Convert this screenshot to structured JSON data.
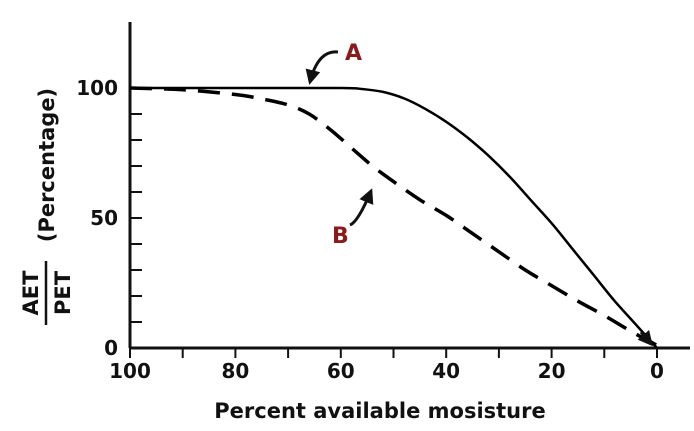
{
  "chart_data": {
    "type": "line",
    "xlabel": "Percent available mosisture",
    "ylabel": {
      "numerator": "AET",
      "denominator": "PET",
      "suffix": "(Percentage)"
    },
    "xlim": [
      100,
      0
    ],
    "ylim": [
      0,
      100
    ],
    "x_ticks": [
      100,
      80,
      60,
      40,
      20,
      0
    ],
    "y_ticks": [
      0,
      50,
      100
    ],
    "grid": false,
    "series": [
      {
        "name": "A",
        "style": "solid",
        "color": "#000000",
        "x": [
          100,
          80,
          60,
          56,
          52,
          48,
          44,
          40,
          36,
          32,
          28,
          24,
          20,
          16,
          12,
          8,
          4,
          0
        ],
        "y": [
          100,
          100,
          100,
          99.6,
          98.5,
          96,
          92,
          87,
          81,
          74,
          66,
          57,
          48,
          38,
          28,
          18,
          9,
          0
        ]
      },
      {
        "name": "B",
        "style": "dashed",
        "color": "#000000",
        "x": [
          100,
          90,
          80,
          75,
          70,
          66,
          62,
          58,
          54,
          50,
          45,
          40,
          35,
          30,
          25,
          20,
          15,
          10,
          5,
          0
        ],
        "y": [
          100,
          99.3,
          97.5,
          95.8,
          93.5,
          90,
          84,
          77,
          70,
          64,
          57,
          51,
          44,
          37,
          30,
          24,
          18,
          12.5,
          6.5,
          1
        ]
      }
    ],
    "annotations": [
      "A",
      "B"
    ]
  }
}
